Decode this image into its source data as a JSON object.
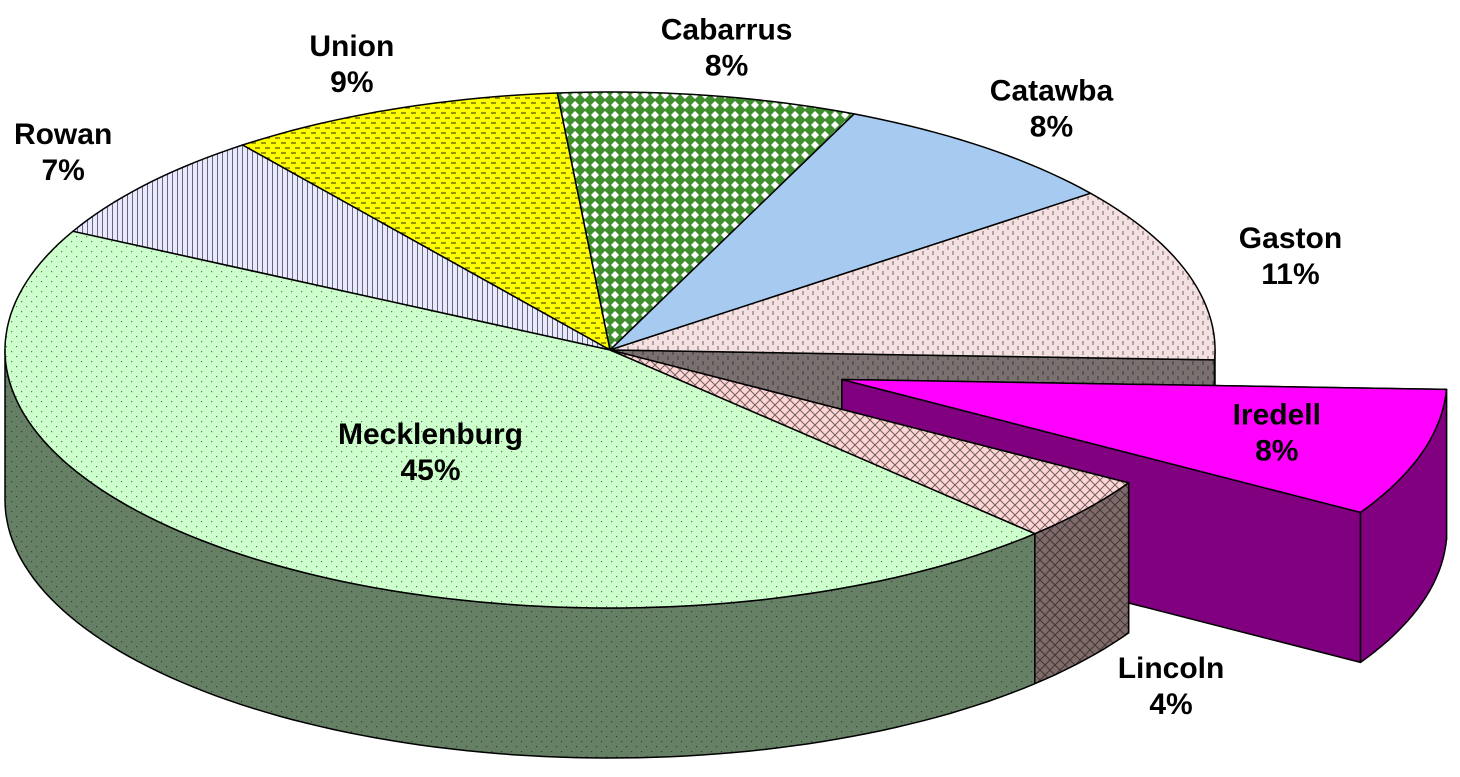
{
  "chart_data": {
    "type": "pie",
    "view": "3d",
    "categories": [
      "Cabarrus",
      "Catawba",
      "Gaston",
      "Iredell",
      "Lincoln",
      "Mecklenburg",
      "Rowan",
      "Union"
    ],
    "values": [
      8,
      8,
      11,
      8,
      4,
      45,
      7,
      9
    ],
    "value_labels": [
      "8%",
      "8%",
      "11%",
      "8%",
      "4%",
      "45%",
      "7%",
      "9%"
    ],
    "colors": [
      "#3f8f2f",
      "#a6caf0",
      "#f4e0e0",
      "#ff00ff",
      "#ffd6d6",
      "#ccffcc",
      "#e8e8ff",
      "#ffff00"
    ],
    "explode": [
      0,
      0,
      0,
      1,
      0,
      0,
      0,
      0
    ]
  }
}
